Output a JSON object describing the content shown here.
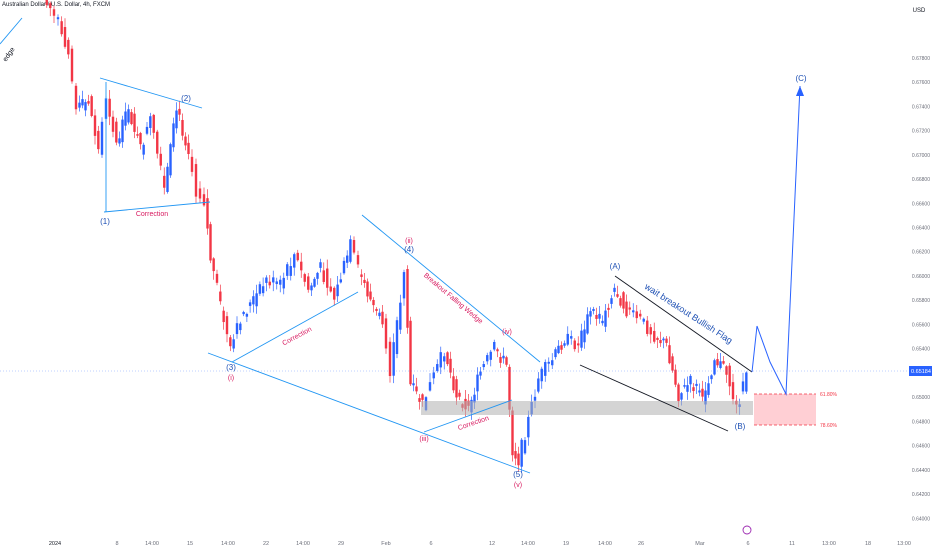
{
  "header": {
    "title": "Australian Dollar / U.S. Dollar, 4h, FXCM",
    "currency": "USD",
    "corner_text": "edge"
  },
  "chart_data": {
    "type": "candlestick",
    "symbol": "AUDUSD",
    "timeframe": "4h",
    "ylim": [
      0.6397,
      0.6798
    ],
    "y_ticks": [
      "0.67800",
      "0.67600",
      "0.67400",
      "0.67200",
      "0.67000",
      "0.66800",
      "0.66600",
      "0.66400",
      "0.66200",
      "0.66000",
      "0.65800",
      "0.65600",
      "0.65400",
      "0.65200",
      "0.65000",
      "0.64800",
      "0.64600",
      "0.64400",
      "0.64200",
      "0.64000"
    ],
    "x_ticks": [
      "2024",
      "8",
      "14:00",
      "15",
      "14:00",
      "22",
      "14:00",
      "29",
      "Feb",
      "6",
      "12",
      "14:00",
      "19",
      "14:00",
      "26",
      "Mar",
      "6",
      "11",
      "13:00",
      "18",
      "13:00"
    ],
    "last_price": "0.65184",
    "colors": {
      "up": "#2962ff",
      "down": "#f23645",
      "lines": "#2196f3",
      "wave_red": "#d81b60",
      "wave_blue": "#1e50b4",
      "zone_gray": "#9e9e9e",
      "zone_pink": "#ffc7cc"
    },
    "waves": {
      "w1": "(1)",
      "w2": "(2)",
      "w3": "(3)",
      "w4": "(4)",
      "w5": "(5)",
      "wA": "(A)",
      "wB": "(B)",
      "wC": "(C)",
      "i": "(i)",
      "ii": "(ii)",
      "iii": "(iii)",
      "iv": "(iv)",
      "v": "(v)"
    },
    "annotations": {
      "correction1": "Correction",
      "correction2": "Correction",
      "correction3": "Correction",
      "wedge": "Breakout Falling Wedge",
      "flag": "wait breakout Bullish Flag"
    },
    "fib": {
      "level1": "61.80%",
      "level2": "78.60%"
    }
  }
}
